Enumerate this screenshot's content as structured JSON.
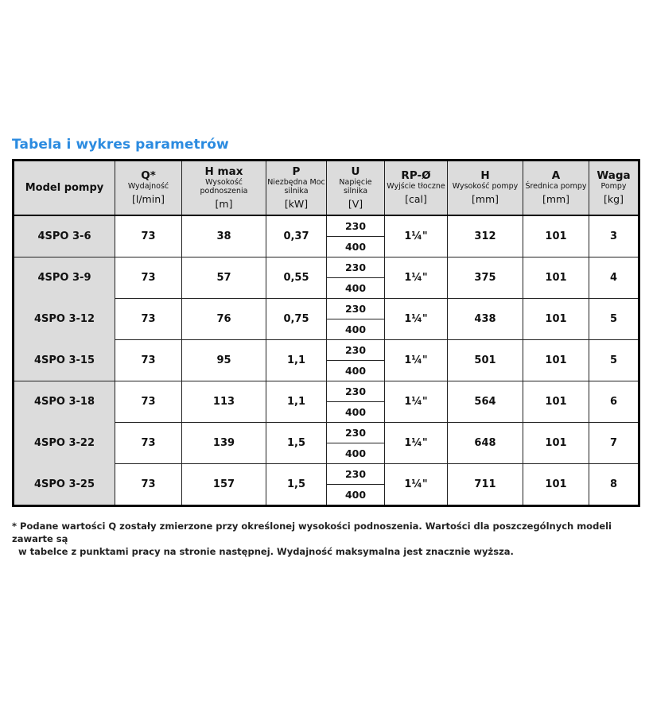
{
  "title": "Tabela i wykres parametrów",
  "headers": [
    {
      "sym": "Model pompy",
      "desc": "",
      "unit": ""
    },
    {
      "sym": "Q*",
      "desc": "Wydajność",
      "unit": "[l/min]"
    },
    {
      "sym": "H max",
      "desc": "Wysokość podnoszenia",
      "unit": "[m]"
    },
    {
      "sym": "P",
      "desc": "Niezbędna Moc silnika",
      "unit": "[kW]"
    },
    {
      "sym": "U",
      "desc": "Napięcie silnika",
      "unit": "[V]"
    },
    {
      "sym": "RP-Ø",
      "desc": "Wyjście tłoczne",
      "unit": "[cal]"
    },
    {
      "sym": "H",
      "desc": "Wysokość pompy",
      "unit": "[mm]"
    },
    {
      "sym": "A",
      "desc": "Średnica pompy",
      "unit": "[mm]"
    },
    {
      "sym": "Waga",
      "desc": "Pompy",
      "unit": "[kg]"
    }
  ],
  "rows": [
    {
      "model": "4SPO 3-6",
      "q": "73",
      "hmax": "38",
      "p": "0,37",
      "u1": "230",
      "u2": "400",
      "rp": "1¼\"",
      "h": "312",
      "a": "101",
      "waga": "3"
    },
    {
      "model": "4SPO 3-9",
      "q": "73",
      "hmax": "57",
      "p": "0,55",
      "u1": "230",
      "u2": "400",
      "rp": "1¼\"",
      "h": "375",
      "a": "101",
      "waga": "4"
    },
    {
      "model": "4SPO 3-12",
      "q": "73",
      "hmax": "76",
      "p": "0,75",
      "u1": "230",
      "u2": "400",
      "rp": "1¼\"",
      "h": "438",
      "a": "101",
      "waga": "5"
    },
    {
      "model": "4SPO 3-15",
      "q": "73",
      "hmax": "95",
      "p": "1,1",
      "u1": "230",
      "u2": "400",
      "rp": "1¼\"",
      "h": "501",
      "a": "101",
      "waga": "5"
    },
    {
      "model": "4SPO 3-18",
      "q": "73",
      "hmax": "113",
      "p": "1,1",
      "u1": "230",
      "u2": "400",
      "rp": "1¼\"",
      "h": "564",
      "a": "101",
      "waga": "6"
    },
    {
      "model": "4SPO 3-22",
      "q": "73",
      "hmax": "139",
      "p": "1,5",
      "u1": "230",
      "u2": "400",
      "rp": "1¼\"",
      "h": "648",
      "a": "101",
      "waga": "7"
    },
    {
      "model": "4SPO 3-25",
      "q": "73",
      "hmax": "157",
      "p": "1,5",
      "u1": "230",
      "u2": "400",
      "rp": "1¼\"",
      "h": "711",
      "a": "101",
      "waga": "8"
    }
  ],
  "footnote": {
    "line1": "* Podane wartości Q zostały zmierzone przy określonej wysokości podnoszenia. Wartości dla poszczególnych modeli zawarte są",
    "line2": "w tabelce z punktami pracy na stronie następnej. Wydajność maksymalna jest znacznie wyższa."
  }
}
